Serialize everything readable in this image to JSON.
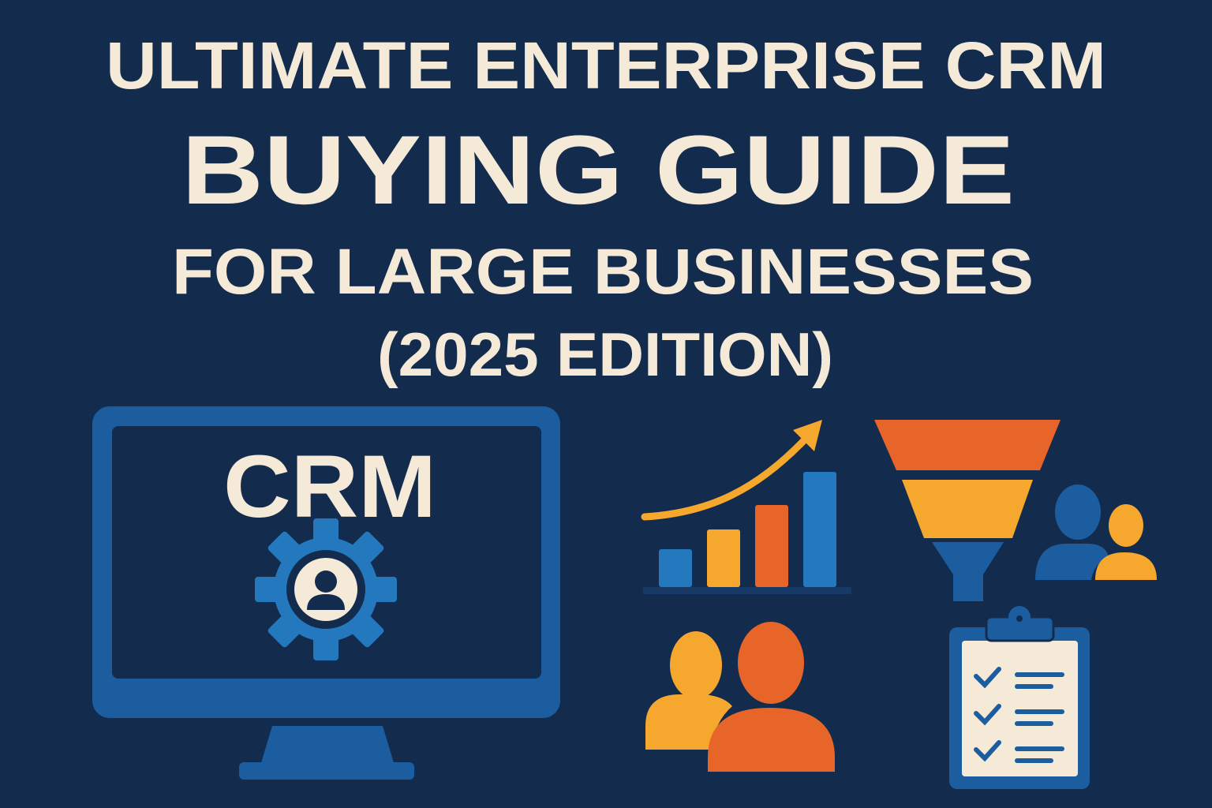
{
  "title": {
    "line1": "ULTIMATE ENTERPRISE CRM",
    "line2": "BUYING GUIDE",
    "line3": "FOR LARGE BUSINESSES",
    "line4": "(2025 EDITION)"
  },
  "monitor": {
    "screen_label": "CRM",
    "icon": "gear-with-user-icon"
  },
  "icons": [
    "growth-bar-chart-icon",
    "sales-funnel-icon",
    "team-icon",
    "people-icon",
    "checklist-clipboard-icon"
  ],
  "colors": {
    "background": "#132b4c",
    "text": "#f5e9d8",
    "blue": "#1c5d9f",
    "light_blue": "#2479be",
    "orange": "#e8652a",
    "yellow": "#f6a72e"
  }
}
